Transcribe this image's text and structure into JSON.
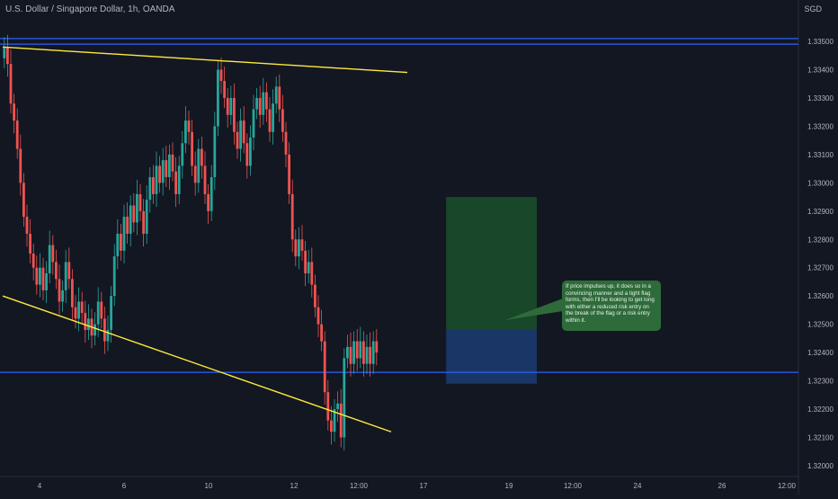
{
  "header": {
    "title": "U.S. Dollar / Singapore Dollar, 1h, OANDA",
    "currency": "SGD"
  },
  "annotation": {
    "text": "If price impulses up, it does so in a convincing manner and a tight flag forms, then I'll be looking to get long with either a reduced risk entry on the break of the flag or a risk entry within it."
  },
  "colors": {
    "background": "#131722",
    "up": "#26a69a",
    "down": "#ef5350",
    "level_line": "#2962ff",
    "trendline": "#ffeb3b",
    "target_zone": "#1b4d2a",
    "stop_zone": "#1c3a6e",
    "callout": "#2e6b3a"
  },
  "chart_data": {
    "type": "candlestick",
    "symbol": "USDSGD",
    "timeframe": "1h",
    "y_ticks": [
      "1.33500",
      "1.33400",
      "1.33300",
      "1.33200",
      "1.33100",
      "1.33000",
      "1.32900",
      "1.32800",
      "1.32700",
      "1.32600",
      "1.32500",
      "1.32400",
      "1.32300",
      "1.32200",
      "1.32100",
      "1.32000"
    ],
    "ylim": [
      1.3196,
      1.3359
    ],
    "x_ticks": [
      "4",
      "6",
      "10",
      "12",
      "12:00",
      "17",
      "19",
      "12:00",
      "24",
      "26",
      "12:00"
    ],
    "horizontal_levels": [
      1.3351,
      1.3349,
      1.3233
    ],
    "trendlines": [
      {
        "name": "upper",
        "from": [
          0,
          1.3348
        ],
        "to": [
          125,
          1.3339
        ]
      },
      {
        "name": "lower",
        "from": [
          0,
          1.326
        ],
        "to": [
          120,
          1.3212
        ]
      }
    ],
    "position": {
      "type": "long",
      "entry": 1.3248,
      "target": 1.3295,
      "stop": 1.3229,
      "start_bar": 137,
      "end_bar": 165
    },
    "candles": [
      {
        "o": 1.3344,
        "c": 1.3348
      },
      {
        "o": 1.3348,
        "c": 1.3342
      },
      {
        "o": 1.3342,
        "c": 1.3328
      },
      {
        "o": 1.3328,
        "c": 1.3322
      },
      {
        "o": 1.3322,
        "c": 1.3312
      },
      {
        "o": 1.3312,
        "c": 1.33
      },
      {
        "o": 1.33,
        "c": 1.3288
      },
      {
        "o": 1.3288,
        "c": 1.3282
      },
      {
        "o": 1.3282,
        "c": 1.3275
      },
      {
        "o": 1.3275,
        "c": 1.327
      },
      {
        "o": 1.327,
        "c": 1.3264
      },
      {
        "o": 1.3264,
        "c": 1.327
      },
      {
        "o": 1.327,
        "c": 1.3262
      },
      {
        "o": 1.3262,
        "c": 1.3268
      },
      {
        "o": 1.3268,
        "c": 1.3278
      },
      {
        "o": 1.3278,
        "c": 1.3272
      },
      {
        "o": 1.3272,
        "c": 1.3266
      },
      {
        "o": 1.3266,
        "c": 1.3258
      },
      {
        "o": 1.3258,
        "c": 1.3262
      },
      {
        "o": 1.3262,
        "c": 1.3272
      },
      {
        "o": 1.3272,
        "c": 1.3266
      },
      {
        "o": 1.3266,
        "c": 1.3256
      },
      {
        "o": 1.3256,
        "c": 1.3252
      },
      {
        "o": 1.3252,
        "c": 1.3258
      },
      {
        "o": 1.3258,
        "c": 1.3254
      },
      {
        "o": 1.3254,
        "c": 1.3248
      },
      {
        "o": 1.3248,
        "c": 1.3252
      },
      {
        "o": 1.3252,
        "c": 1.3246
      },
      {
        "o": 1.3246,
        "c": 1.325
      },
      {
        "o": 1.325,
        "c": 1.3258
      },
      {
        "o": 1.3258,
        "c": 1.3252
      },
      {
        "o": 1.3252,
        "c": 1.3244
      },
      {
        "o": 1.3244,
        "c": 1.3248
      },
      {
        "o": 1.3248,
        "c": 1.326
      },
      {
        "o": 1.326,
        "c": 1.3274
      },
      {
        "o": 1.3274,
        "c": 1.3282
      },
      {
        "o": 1.3282,
        "c": 1.3276
      },
      {
        "o": 1.3276,
        "c": 1.3288
      },
      {
        "o": 1.3288,
        "c": 1.3282
      },
      {
        "o": 1.3282,
        "c": 1.3292
      },
      {
        "o": 1.3292,
        "c": 1.3286
      },
      {
        "o": 1.3286,
        "c": 1.3296
      },
      {
        "o": 1.3296,
        "c": 1.329
      },
      {
        "o": 1.329,
        "c": 1.3282
      },
      {
        "o": 1.3282,
        "c": 1.3294
      },
      {
        "o": 1.3294,
        "c": 1.3302
      },
      {
        "o": 1.3302,
        "c": 1.3296
      },
      {
        "o": 1.3296,
        "c": 1.3306
      },
      {
        "o": 1.3306,
        "c": 1.33
      },
      {
        "o": 1.33,
        "c": 1.3308
      },
      {
        "o": 1.3308,
        "c": 1.3302
      },
      {
        "o": 1.3302,
        "c": 1.331
      },
      {
        "o": 1.331,
        "c": 1.3304
      },
      {
        "o": 1.3304,
        "c": 1.3296
      },
      {
        "o": 1.3296,
        "c": 1.3306
      },
      {
        "o": 1.3306,
        "c": 1.3314
      },
      {
        "o": 1.3314,
        "c": 1.3322
      },
      {
        "o": 1.3322,
        "c": 1.3318
      },
      {
        "o": 1.3318,
        "c": 1.3306
      },
      {
        "o": 1.3306,
        "c": 1.33
      },
      {
        "o": 1.33,
        "c": 1.3312
      },
      {
        "o": 1.3312,
        "c": 1.3306
      },
      {
        "o": 1.3306,
        "c": 1.3296
      },
      {
        "o": 1.3296,
        "c": 1.329
      },
      {
        "o": 1.329,
        "c": 1.3302
      },
      {
        "o": 1.3302,
        "c": 1.332
      },
      {
        "o": 1.332,
        "c": 1.334
      },
      {
        "o": 1.334,
        "c": 1.3336
      },
      {
        "o": 1.3336,
        "c": 1.333
      },
      {
        "o": 1.333,
        "c": 1.3324
      },
      {
        "o": 1.3324,
        "c": 1.333
      },
      {
        "o": 1.333,
        "c": 1.3318
      },
      {
        "o": 1.3318,
        "c": 1.3312
      },
      {
        "o": 1.3312,
        "c": 1.3322
      },
      {
        "o": 1.3322,
        "c": 1.3314
      },
      {
        "o": 1.3314,
        "c": 1.3306
      },
      {
        "o": 1.3306,
        "c": 1.3316
      },
      {
        "o": 1.3316,
        "c": 1.3326
      },
      {
        "o": 1.3326,
        "c": 1.333
      },
      {
        "o": 1.333,
        "c": 1.3324
      },
      {
        "o": 1.3324,
        "c": 1.3332
      },
      {
        "o": 1.3332,
        "c": 1.3326
      },
      {
        "o": 1.3326,
        "c": 1.3318
      },
      {
        "o": 1.3318,
        "c": 1.3328
      },
      {
        "o": 1.3328,
        "c": 1.3334
      },
      {
        "o": 1.3334,
        "c": 1.3326
      },
      {
        "o": 1.3326,
        "c": 1.3318
      },
      {
        "o": 1.3318,
        "c": 1.331
      },
      {
        "o": 1.331,
        "c": 1.3296
      },
      {
        "o": 1.3296,
        "c": 1.328
      },
      {
        "o": 1.328,
        "c": 1.3274
      },
      {
        "o": 1.3274,
        "c": 1.328
      },
      {
        "o": 1.328,
        "c": 1.3276
      },
      {
        "o": 1.3276,
        "c": 1.3268
      },
      {
        "o": 1.3268,
        "c": 1.3272
      },
      {
        "o": 1.3272,
        "c": 1.3264
      },
      {
        "o": 1.3264,
        "c": 1.3256
      },
      {
        "o": 1.3256,
        "c": 1.325
      },
      {
        "o": 1.325,
        "c": 1.3244
      },
      {
        "o": 1.3244,
        "c": 1.3226
      },
      {
        "o": 1.3226,
        "c": 1.3216
      },
      {
        "o": 1.3216,
        "c": 1.3212
      },
      {
        "o": 1.3212,
        "c": 1.322
      },
      {
        "o": 1.322,
        "c": 1.3222
      },
      {
        "o": 1.3222,
        "c": 1.321
      },
      {
        "o": 1.321,
        "c": 1.3238
      },
      {
        "o": 1.3238,
        "c": 1.3242
      },
      {
        "o": 1.3242,
        "c": 1.3236
      },
      {
        "o": 1.3236,
        "c": 1.3244
      },
      {
        "o": 1.3244,
        "c": 1.3238
      },
      {
        "o": 1.3238,
        "c": 1.3244
      },
      {
        "o": 1.3244,
        "c": 1.3236
      },
      {
        "o": 1.3236,
        "c": 1.3242
      },
      {
        "o": 1.3242,
        "c": 1.3236
      },
      {
        "o": 1.3236,
        "c": 1.3244
      },
      {
        "o": 1.3244,
        "c": 1.324
      }
    ]
  }
}
